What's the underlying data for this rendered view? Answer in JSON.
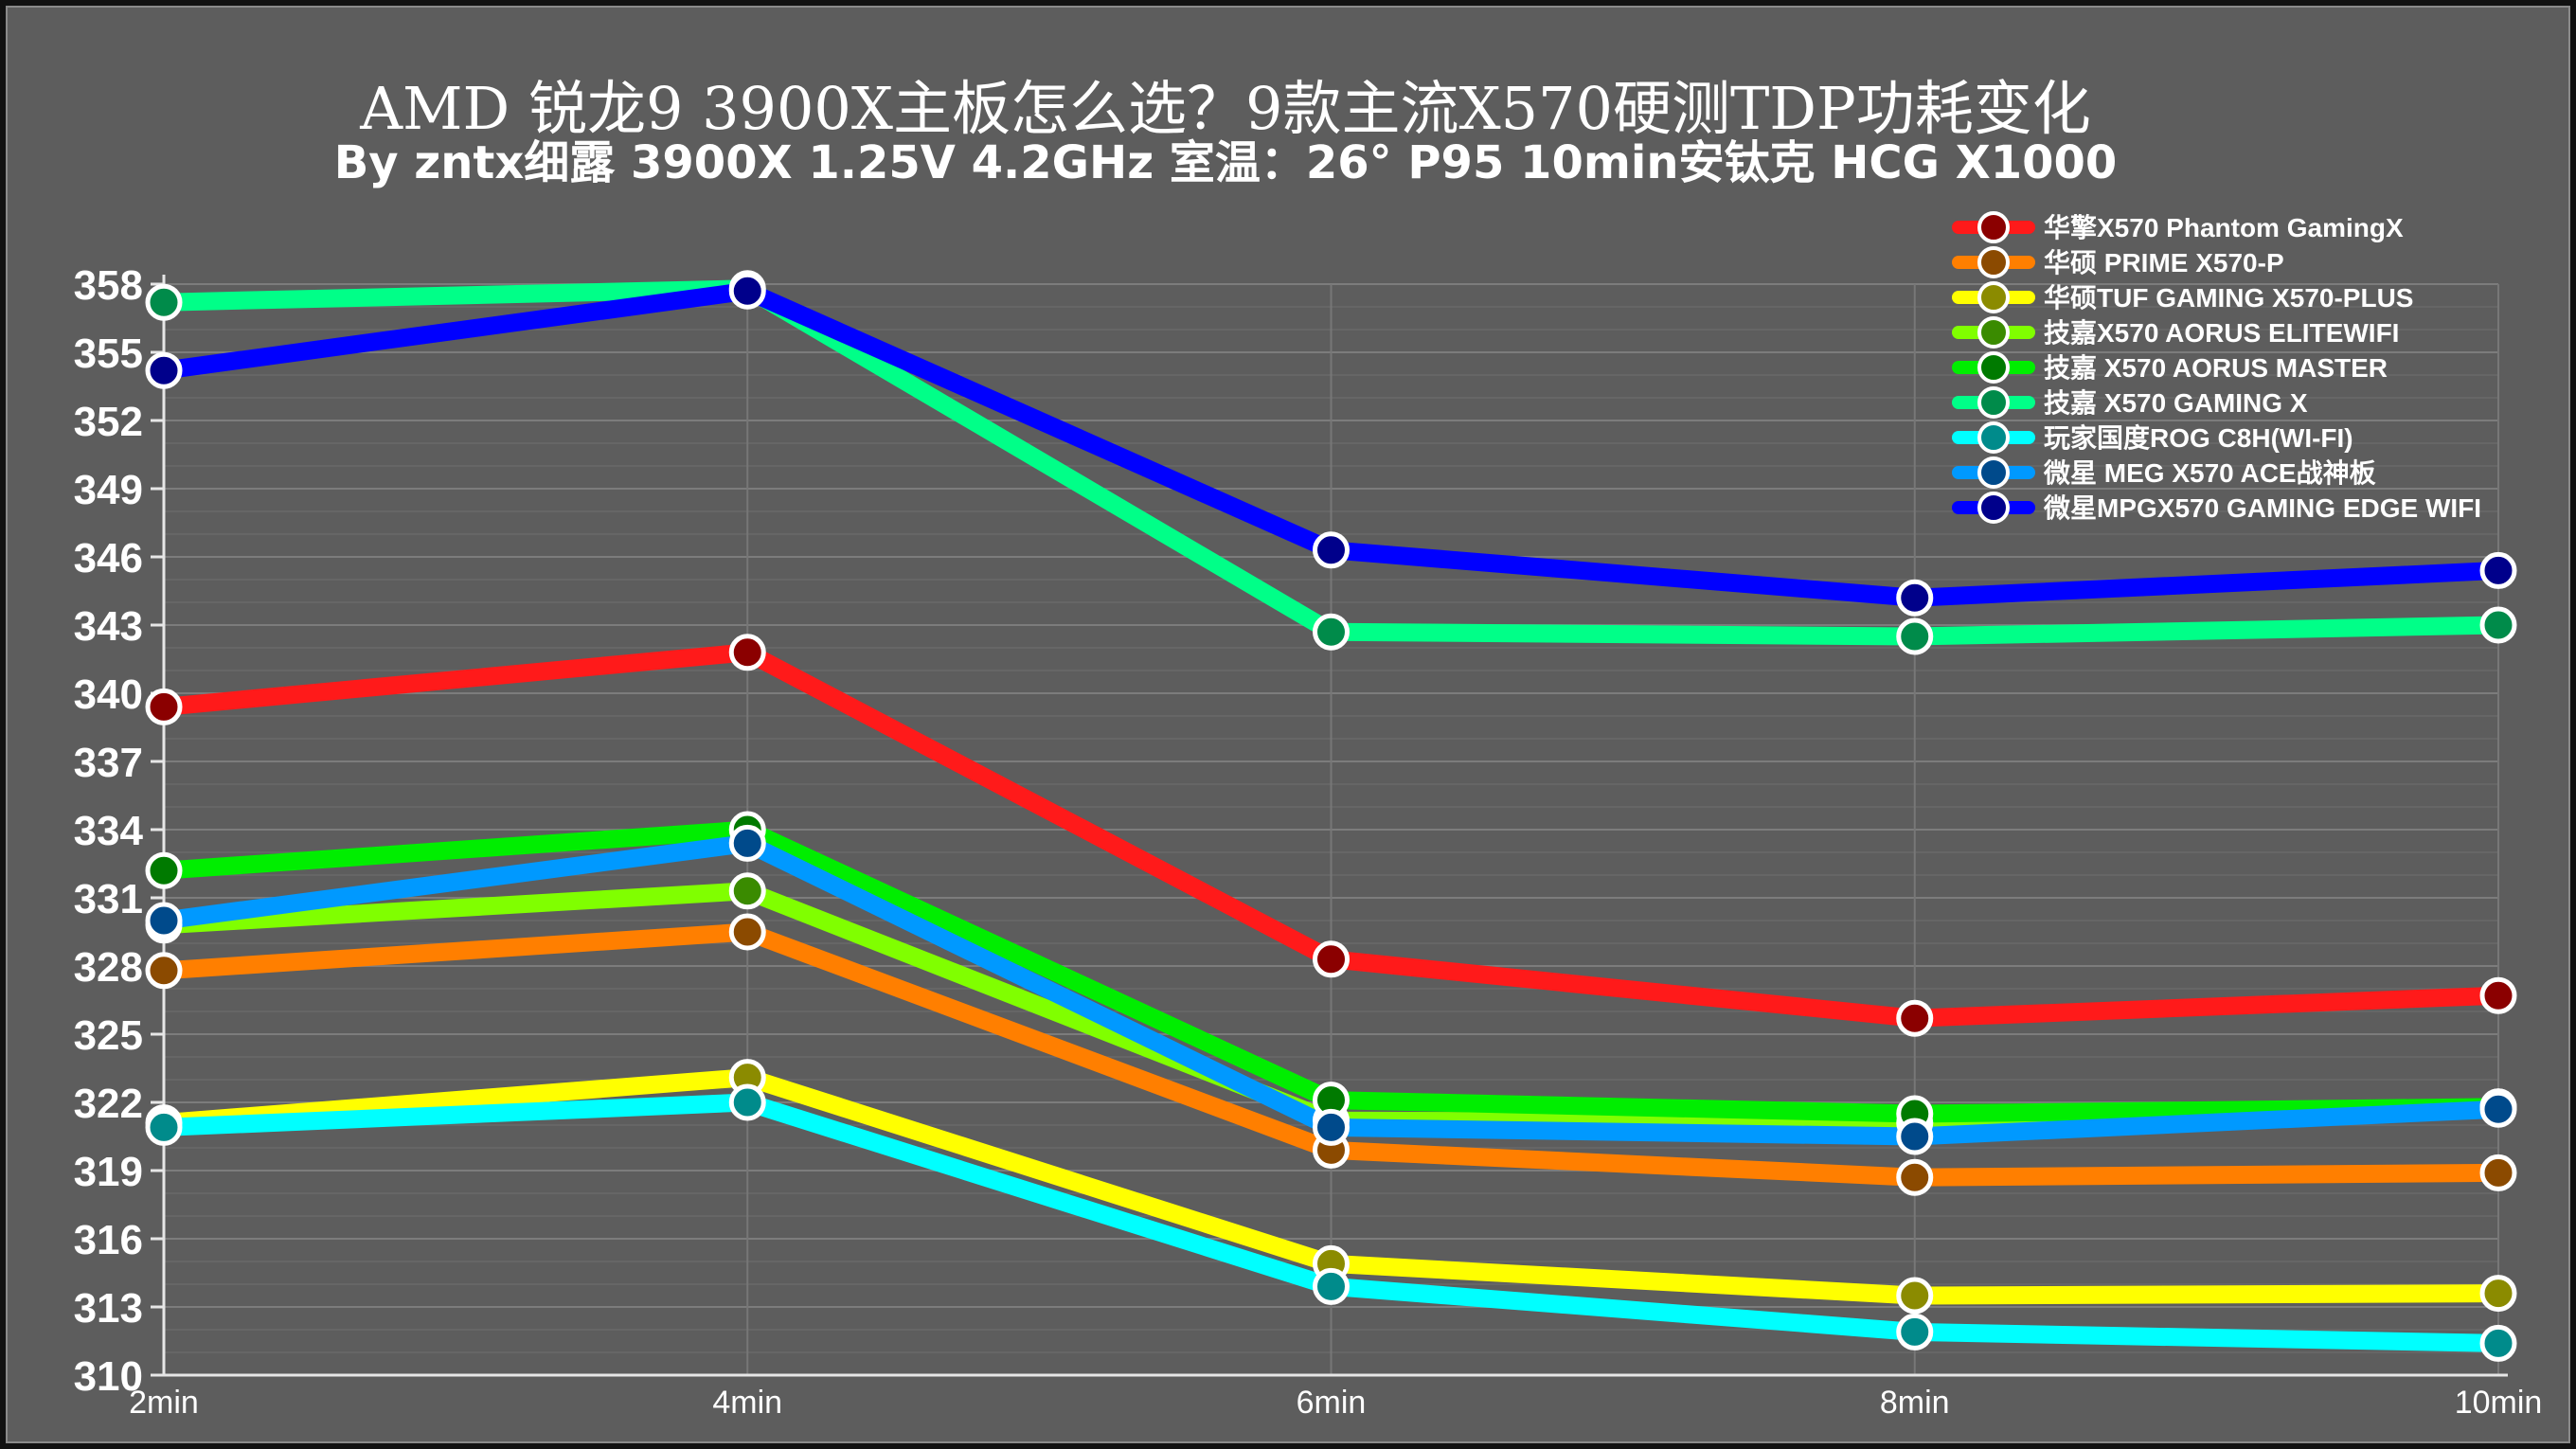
{
  "chart_data": {
    "type": "line",
    "title": "AMD 锐龙9 3900X主板怎么选？9款主流X570硬测TDP功耗变化",
    "subtitle": "By zntx细露 3900X 1.25V 4.2GHz 室温：26° P95 10min安钛克 HCG X1000",
    "x": [
      "2min",
      "4min",
      "6min",
      "8min",
      "10min"
    ],
    "y_ticks": [
      "358",
      "355",
      "352",
      "349",
      "346",
      "343",
      "340",
      "337",
      "334",
      "331",
      "328",
      "325",
      "322",
      "319",
      "316",
      "313",
      "310"
    ],
    "ylim": [
      310,
      358
    ],
    "grid": true,
    "legend_position": "top-right",
    "series": [
      {
        "name": "华擎X570 Phantom GamingX",
        "color": "#ff1a1a",
        "marker": "#8b0000",
        "values": [
          339.4,
          341.8,
          328.3,
          325.7,
          326.7
        ]
      },
      {
        "name": "华硕 PRIME X570-P",
        "color": "#ff7f00",
        "marker": "#8b4a00",
        "values": [
          327.8,
          329.5,
          319.9,
          318.7,
          318.9
        ]
      },
      {
        "name": "华硕TUF GAMING X570-PLUS",
        "color": "#ffff00",
        "marker": "#8b8b00",
        "values": [
          321.1,
          323.1,
          314.9,
          313.5,
          313.6
        ]
      },
      {
        "name": "技嘉X570 AORUS ELITEWIFI",
        "color": "#80ff00",
        "marker": "#3a8b00",
        "values": [
          329.8,
          331.3,
          321.2,
          321.1,
          321.8
        ]
      },
      {
        "name": "技嘉 X570 AORUS MASTER",
        "color": "#00ee00",
        "marker": "#007a00",
        "values": [
          332.2,
          334.0,
          322.1,
          321.5,
          321.8
        ]
      },
      {
        "name": "技嘉 X570 GAMING X",
        "color": "#00ff88",
        "marker": "#008b4a",
        "values": [
          357.2,
          357.8,
          342.7,
          342.5,
          343.0
        ]
      },
      {
        "name": "玩家国度ROG C8H(WI-FI)",
        "color": "#00ffff",
        "marker": "#008b8b",
        "values": [
          320.9,
          322.0,
          313.9,
          311.9,
          311.4
        ]
      },
      {
        "name": "微星 MEG X570 ACE战神板",
        "color": "#0099ff",
        "marker": "#004a8b",
        "values": [
          330.0,
          333.4,
          320.9,
          320.5,
          321.7
        ]
      },
      {
        "name": "微星MPGX570 GAMING EDGE WIFI",
        "color": "#0000ff",
        "marker": "#00008b",
        "values": [
          354.2,
          357.7,
          346.3,
          344.2,
          345.4
        ]
      }
    ]
  }
}
